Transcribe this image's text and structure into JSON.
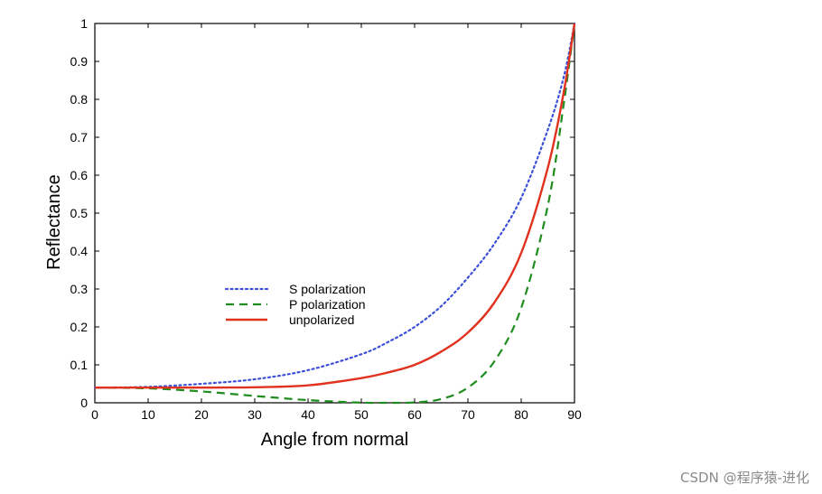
{
  "chart_data": {
    "type": "line",
    "title": "",
    "xlabel": "Angle from normal",
    "ylabel": "Reflectance",
    "xlim": [
      0,
      90
    ],
    "ylim": [
      0,
      1
    ],
    "xticks": [
      "0",
      "10",
      "20",
      "30",
      "40",
      "50",
      "60",
      "70",
      "80",
      "90"
    ],
    "yticks": [
      "0",
      "0.1",
      "0.2",
      "0.3",
      "0.4",
      "0.5",
      "0.6",
      "0.7",
      "0.8",
      "0.9",
      "1"
    ],
    "x": [
      0,
      10,
      20,
      30,
      40,
      50,
      55,
      60,
      65,
      70,
      75,
      80,
      85,
      88,
      90
    ],
    "series": [
      {
        "name": "S polarization",
        "style": "dotted",
        "color": "#3b4fd8",
        "values": [
          0.04,
          0.042,
          0.05,
          0.062,
          0.086,
          0.128,
          0.16,
          0.2,
          0.255,
          0.33,
          0.42,
          0.54,
          0.72,
          0.86,
          1.0
        ]
      },
      {
        "name": "P polarization",
        "style": "dashed",
        "color": "#1e8c1e",
        "values": [
          0.04,
          0.038,
          0.03,
          0.018,
          0.007,
          0.0005,
          0.0,
          0.001,
          0.01,
          0.04,
          0.11,
          0.25,
          0.52,
          0.79,
          1.0
        ]
      },
      {
        "name": "unpolarized",
        "style": "solid",
        "color": "#e0321e",
        "values": [
          0.04,
          0.04,
          0.04,
          0.041,
          0.046,
          0.065,
          0.08,
          0.1,
          0.135,
          0.185,
          0.265,
          0.395,
          0.62,
          0.82,
          1.0
        ]
      }
    ],
    "legend_position": "center-left"
  },
  "watermark": "CSDN @程序猿-进化"
}
